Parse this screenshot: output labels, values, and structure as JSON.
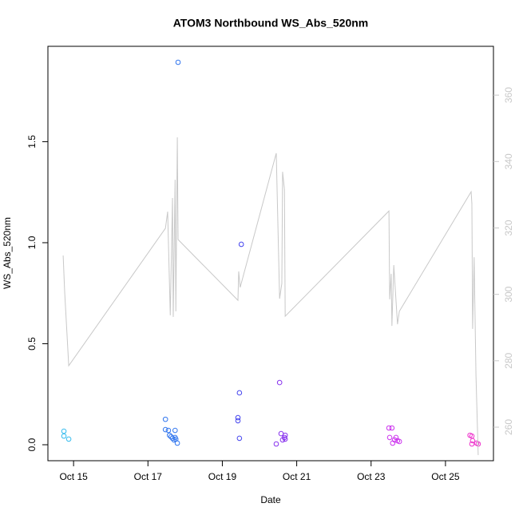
{
  "chart_data": {
    "type": "scatter",
    "title": "ATOM3 Northbound WS_Abs_520nm",
    "x_label": "Date",
    "y_label": "WS_Abs_520nm",
    "xlim": [
      14.31,
      26.29
    ],
    "ylim": [
      -0.079,
      1.972
    ],
    "y2lim": [
      249.9,
      374.7
    ],
    "xticks": [
      {
        "value": 15,
        "label": "Oct 15"
      },
      {
        "value": 17,
        "label": "Oct 17"
      },
      {
        "value": 19,
        "label": "Oct 19"
      },
      {
        "value": 21,
        "label": "Oct 21"
      },
      {
        "value": 23,
        "label": "Oct 23"
      },
      {
        "value": 25,
        "label": "Oct 25"
      }
    ],
    "yticks": [
      {
        "value": 0,
        "label": "0.0"
      },
      0.5,
      {
        "value": 1,
        "label": "1.0"
      },
      1.5
    ],
    "y2ticks": [
      260,
      280,
      300,
      320,
      340,
      360
    ],
    "y2_color": "#c8c8c8",
    "series": [
      {
        "type": "scatter",
        "x": [
          14.74,
          14.74,
          14.87,
          17.47,
          17.47,
          17.55,
          17.58,
          17.62,
          17.66,
          17.7,
          17.73,
          17.75,
          17.73,
          17.79,
          17.81,
          19.42,
          19.42,
          19.46,
          19.46,
          19.51,
          20.45,
          20.54,
          20.58,
          20.62,
          20.69,
          20.67,
          20.69,
          23.48,
          23.56,
          23.5,
          23.58,
          23.63,
          23.67,
          23.71,
          23.76,
          25.66,
          25.71,
          25.73,
          25.71,
          25.84,
          25.88
        ],
        "values": [
          0.067,
          0.043,
          0.028,
          0.126,
          0.075,
          0.071,
          0.047,
          0.04,
          0.032,
          0.024,
          0.036,
          0.028,
          0.071,
          0.008,
          1.893,
          0.134,
          0.119,
          0.257,
          0.032,
          0.992,
          0.004,
          0.308,
          0.055,
          0.024,
          0.047,
          0.036,
          0.028,
          0.083,
          0.083,
          0.036,
          0.008,
          0.024,
          0.036,
          0.02,
          0.016,
          0.047,
          0.043,
          0.02,
          0.004,
          0.008,
          0.004
        ],
        "colors": [
          "#33bbee",
          "#33bbee",
          "#33bbee",
          "#3377ee",
          "#3377ee",
          "#3377ee",
          "#3377ee",
          "#3377ee",
          "#3377ee",
          "#3377ee",
          "#3377ee",
          "#3377ee",
          "#3377ee",
          "#3377ee",
          "#3377ee",
          "#4444ee",
          "#4444ee",
          "#4444ee",
          "#4444ee",
          "#4444ee",
          "#8833ee",
          "#8833ee",
          "#8833ee",
          "#8833ee",
          "#8833ee",
          "#8833ee",
          "#8833ee",
          "#cc33ee",
          "#cc33ee",
          "#cc33ee",
          "#cc33ee",
          "#cc33ee",
          "#cc33ee",
          "#cc33ee",
          "#cc33ee",
          "#ee33cc",
          "#ee33cc",
          "#ee33cc",
          "#ee33cc",
          "#ee33cc",
          "#ee33cc"
        ]
      },
      {
        "type": "line",
        "axis": "y2",
        "color": "#c8c8c8",
        "x": [
          14.72,
          14.76,
          14.87,
          17.47,
          17.53,
          17.6,
          17.66,
          17.68,
          17.73,
          17.75,
          17.79,
          17.81,
          19.42,
          19.44,
          19.48,
          20.45,
          20.54,
          20.6,
          20.62,
          20.67,
          20.69,
          23.48,
          23.5,
          23.54,
          23.56,
          23.61,
          23.71,
          23.76,
          25.69,
          25.71,
          25.73,
          25.77,
          25.82,
          25.88
        ],
        "values": [
          311.7,
          300.9,
          278.5,
          319.9,
          324.9,
          293.7,
          329.0,
          293.2,
          334.5,
          294.9,
          347.3,
          316.5,
          298.2,
          306.9,
          302.1,
          342.5,
          298.7,
          303.3,
          336.9,
          331.6,
          293.4,
          325.1,
          298.5,
          306.2,
          290.5,
          308.8,
          291.0,
          294.9,
          330.9,
          327.3,
          289.6,
          311.2,
          275.6,
          251.6
        ]
      }
    ]
  }
}
